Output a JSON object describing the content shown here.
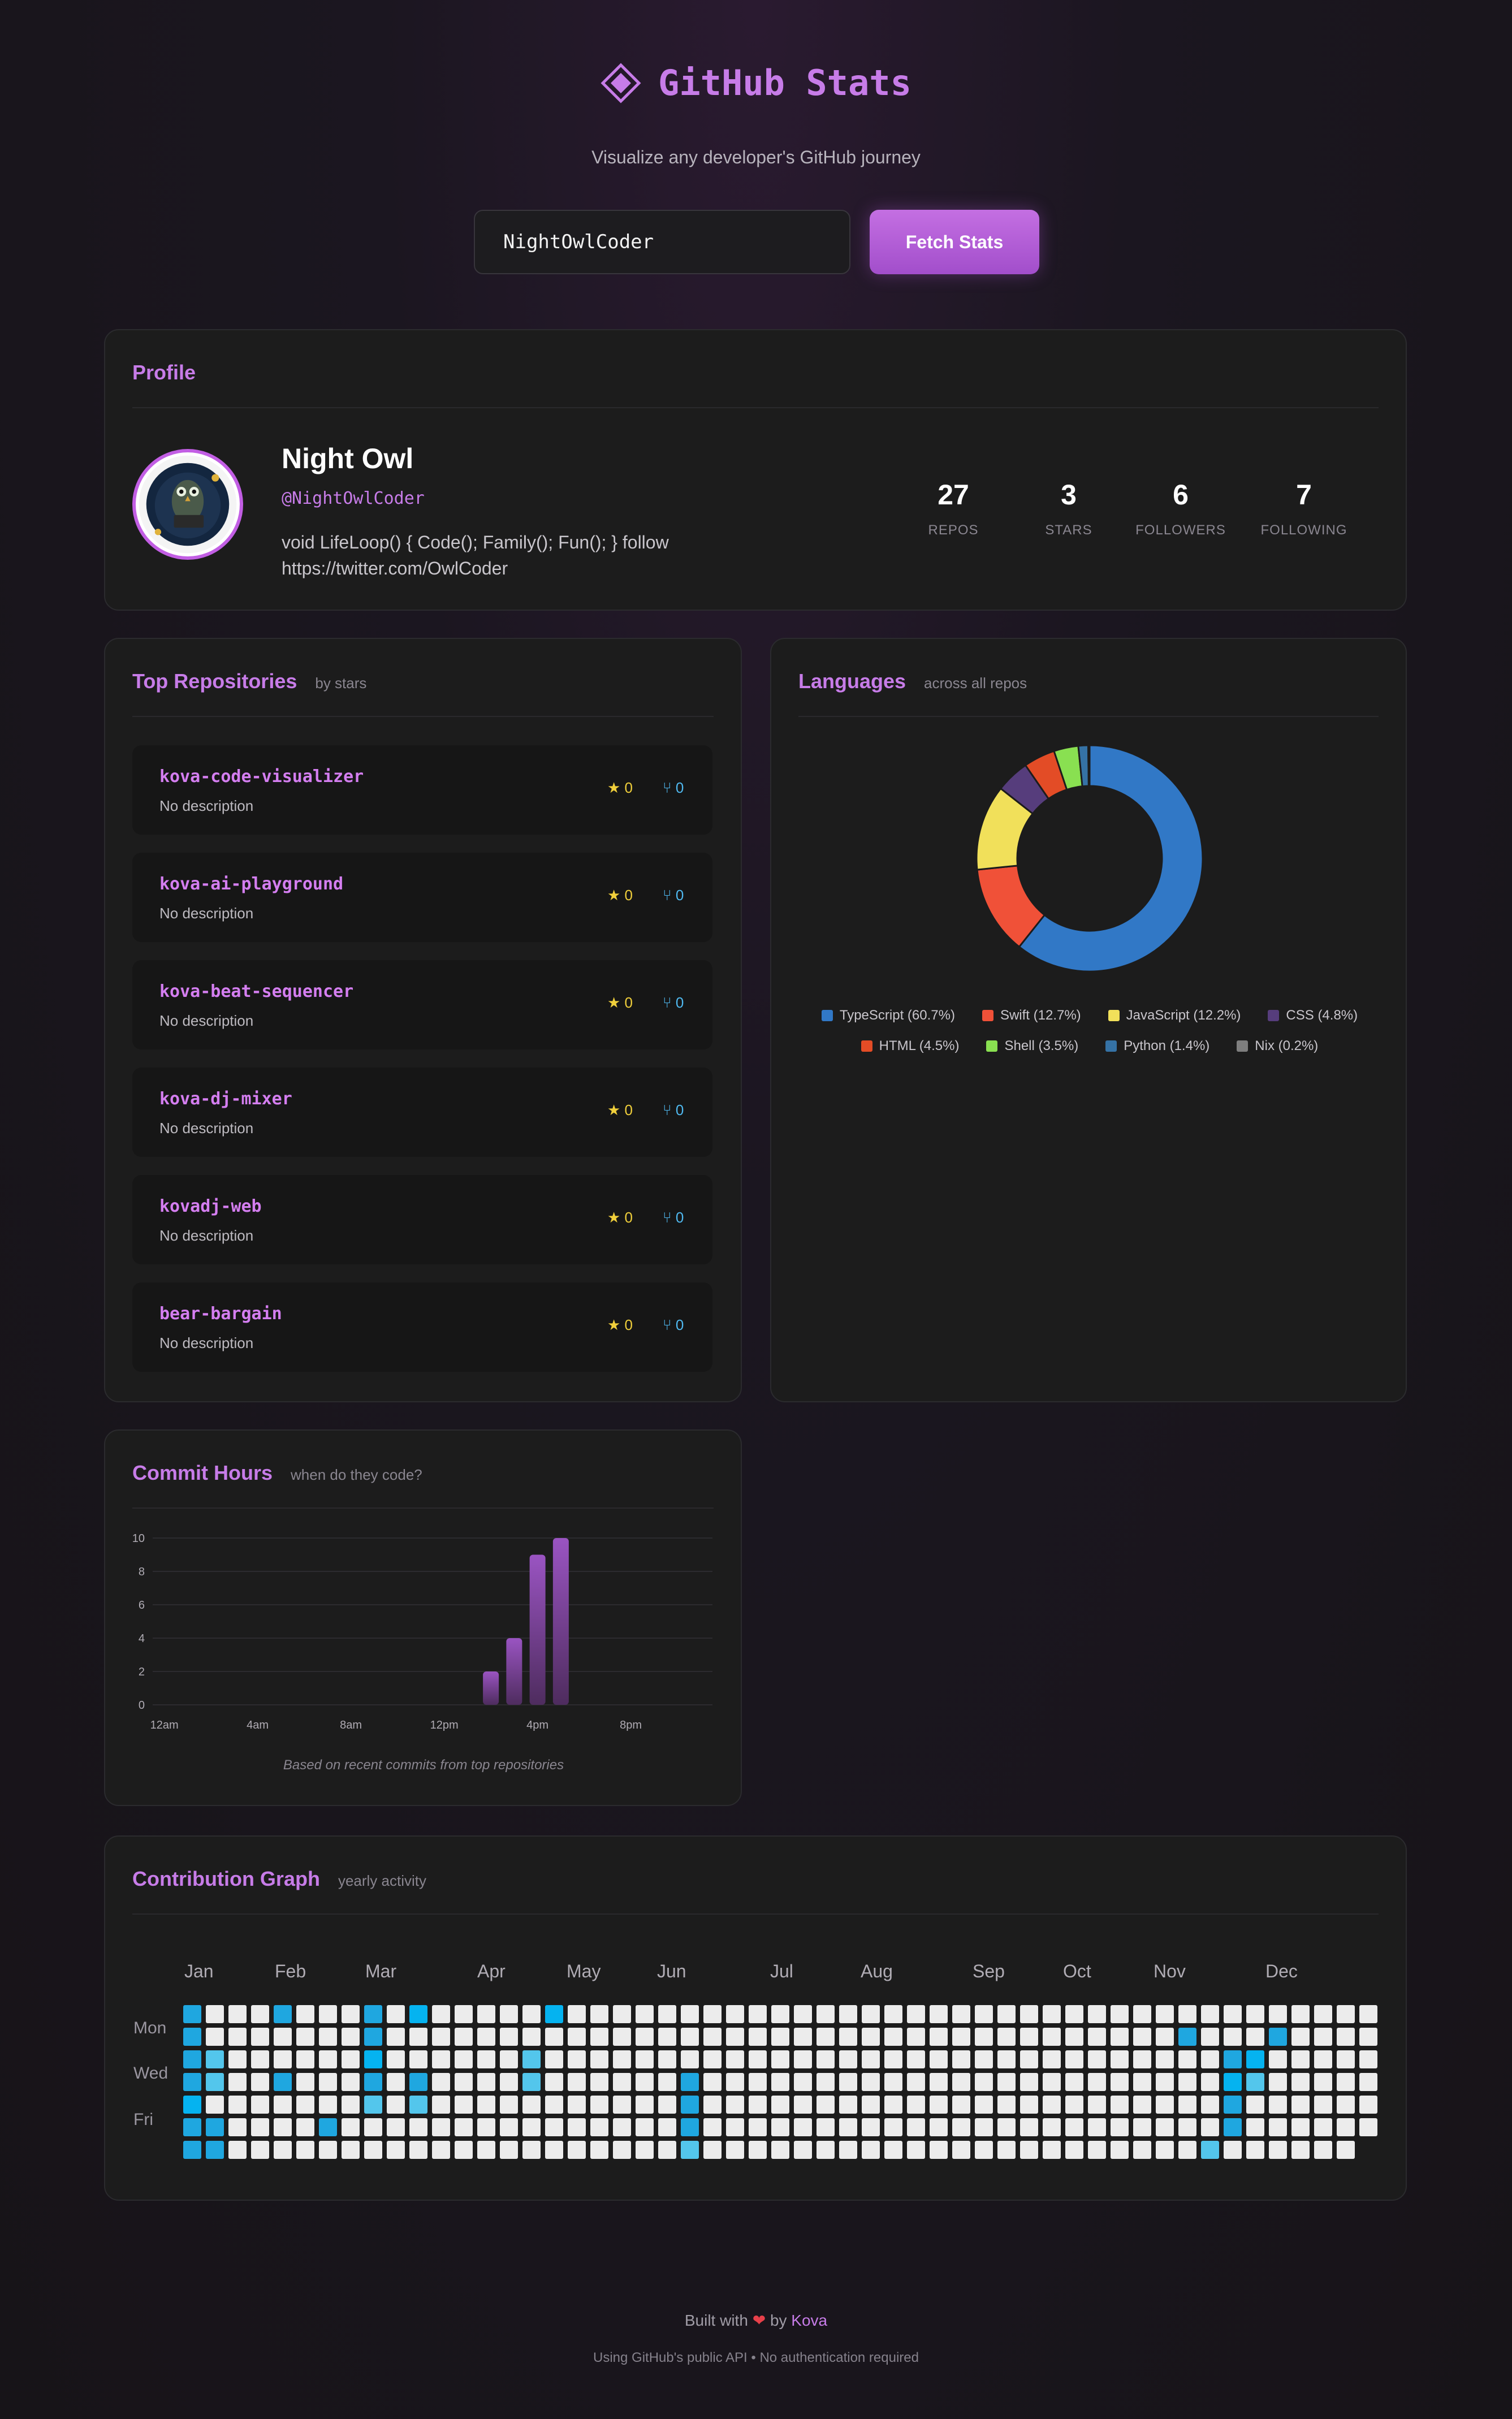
{
  "header": {
    "title": "GitHub Stats",
    "subtitle": "Visualize any developer's GitHub journey"
  },
  "search": {
    "value": "NightOwlCoder",
    "button_label": "Fetch Stats"
  },
  "profile": {
    "section_title": "Profile",
    "name": "Night Owl",
    "handle": "@NightOwlCoder",
    "bio": "void LifeLoop() { Code(); Family(); Fun(); } follow https://twitter.com/OwlCoder",
    "stats": [
      {
        "value": "27",
        "label": "REPOS"
      },
      {
        "value": "3",
        "label": "STARS"
      },
      {
        "value": "6",
        "label": "FOLLOWERS"
      },
      {
        "value": "7",
        "label": "FOLLOWING"
      }
    ]
  },
  "repos": {
    "title": "Top Repositories",
    "subtitle": "by stars",
    "items": [
      {
        "name": "kova-code-visualizer",
        "desc": "No description",
        "stars": "0",
        "forks": "0"
      },
      {
        "name": "kova-ai-playground",
        "desc": "No description",
        "stars": "0",
        "forks": "0"
      },
      {
        "name": "kova-beat-sequencer",
        "desc": "No description",
        "stars": "0",
        "forks": "0"
      },
      {
        "name": "kova-dj-mixer",
        "desc": "No description",
        "stars": "0",
        "forks": "0"
      },
      {
        "name": "kovadj-web",
        "desc": "No description",
        "stars": "0",
        "forks": "0"
      },
      {
        "name": "bear-bargain",
        "desc": "No description",
        "stars": "0",
        "forks": "0"
      }
    ]
  },
  "languages": {
    "title": "Languages",
    "subtitle": "across all repos",
    "items": [
      {
        "label": "TypeScript (60.7%)",
        "pct": 60.7,
        "color": "#3178c6"
      },
      {
        "label": "Swift (12.7%)",
        "pct": 12.7,
        "color": "#f05138"
      },
      {
        "label": "JavaScript (12.2%)",
        "pct": 12.2,
        "color": "#f1e05a"
      },
      {
        "label": "CSS (4.8%)",
        "pct": 4.8,
        "color": "#563d7c"
      },
      {
        "label": "HTML (4.5%)",
        "pct": 4.5,
        "color": "#e34c26"
      },
      {
        "label": "Shell (3.5%)",
        "pct": 3.5,
        "color": "#89e051"
      },
      {
        "label": "Python (1.4%)",
        "pct": 1.4,
        "color": "#3572a5"
      },
      {
        "label": "Nix (0.2%)",
        "pct": 0.2,
        "color": "#7e7e7e"
      }
    ]
  },
  "commit_hours": {
    "title": "Commit Hours",
    "subtitle": "when do they code?",
    "note": "Based on recent commits from top repositories"
  },
  "chart_data": {
    "type": "bar",
    "xlabel": "",
    "ylabel": "",
    "ylim": [
      0,
      10
    ],
    "y_ticks": [
      "0",
      "2",
      "4",
      "6",
      "8",
      "10"
    ],
    "x_tick_labels": [
      "12am",
      "4am",
      "8am",
      "12pm",
      "4pm",
      "8pm"
    ],
    "categories": [
      0,
      1,
      2,
      3,
      4,
      5,
      6,
      7,
      8,
      9,
      10,
      11,
      12,
      13,
      14,
      15,
      16,
      17,
      18,
      19,
      20,
      21,
      22,
      23
    ],
    "values": [
      0,
      0,
      0,
      0,
      0,
      0,
      0,
      0,
      0,
      0,
      0,
      0,
      0,
      0,
      2,
      4,
      9,
      10,
      0,
      0,
      0,
      0,
      0,
      0
    ]
  },
  "contributions": {
    "title": "Contribution Graph",
    "subtitle": "yearly activity",
    "months": [
      "Jan",
      "Feb",
      "Mar",
      "Apr",
      "May",
      "Jun",
      "Jul",
      "Aug",
      "Sep",
      "Oct",
      "Nov",
      "Dec"
    ],
    "days": [
      "Mon",
      "Wed",
      "Fri"
    ],
    "levels": [
      "20002000204000004000000000000000000000000000000000000",
      "20000000200000000000000000000000000000000000200020000",
      "23000000400000030000000000000000000000000000002400000",
      "23002000202000030000002000000000000000000000004300000",
      "40000000303000000000002000000000000000000000002000000",
      "22000020000000000000002000000000000000000000002000000",
      "22000000000000000000003000000000000000000000030000000"
    ]
  },
  "footer": {
    "built_prefix": "Built with",
    "heart": "❤",
    "built_by": "by",
    "author": "Kova",
    "note": "Using GitHub's public API • No authentication required"
  },
  "colors": {
    "accent": "#c77ce8",
    "star": "#f0cf3b",
    "fork": "#4fb9f0",
    "bar": "#8e4bb0"
  }
}
